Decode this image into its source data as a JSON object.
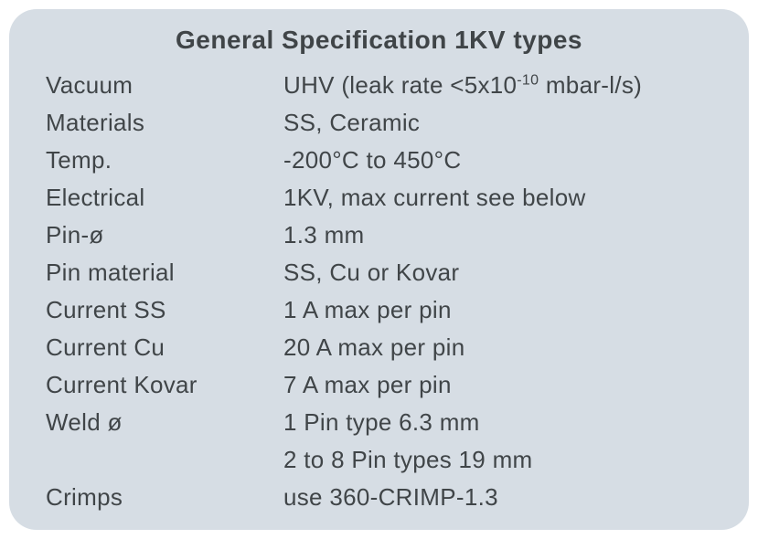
{
  "panel": {
    "title": "General Specification 1KV types",
    "background_color": "#d6dde4",
    "border_radius": 30,
    "title_fontsize": 28,
    "title_color": "#404548",
    "label_fontsize": 26,
    "value_fontsize": 26,
    "text_color": "#404548",
    "font_family": "Century Gothic",
    "label_column_width": 260,
    "rows": [
      {
        "label": "Vacuum",
        "value_html": "UHV (leak rate <5x10<sup>-10</sup> mbar-l/s)"
      },
      {
        "label": "Materials",
        "value_html": "SS, Ceramic"
      },
      {
        "label": "Temp.",
        "value_html": "-200°C to 450°C"
      },
      {
        "label": "Electrical",
        "value_html": "1KV, max current see below"
      },
      {
        "label": "Pin-ø",
        "value_html": "1.3 mm"
      },
      {
        "label": "Pin material",
        "value_html": "SS, Cu or Kovar"
      },
      {
        "label": "Current SS",
        "value_html": "1 A max per pin"
      },
      {
        "label": "Current Cu",
        "value_html": "20 A max per pin"
      },
      {
        "label": "Current Kovar",
        "value_html": "7 A max per pin"
      },
      {
        "label": "Weld ø",
        "value_html": "1 Pin type  6.3 mm"
      },
      {
        "label": "",
        "value_html": "2 to 8 Pin types 19 mm"
      },
      {
        "label": "Crimps",
        "value_html": "use 360-CRIMP-1.3"
      }
    ]
  }
}
